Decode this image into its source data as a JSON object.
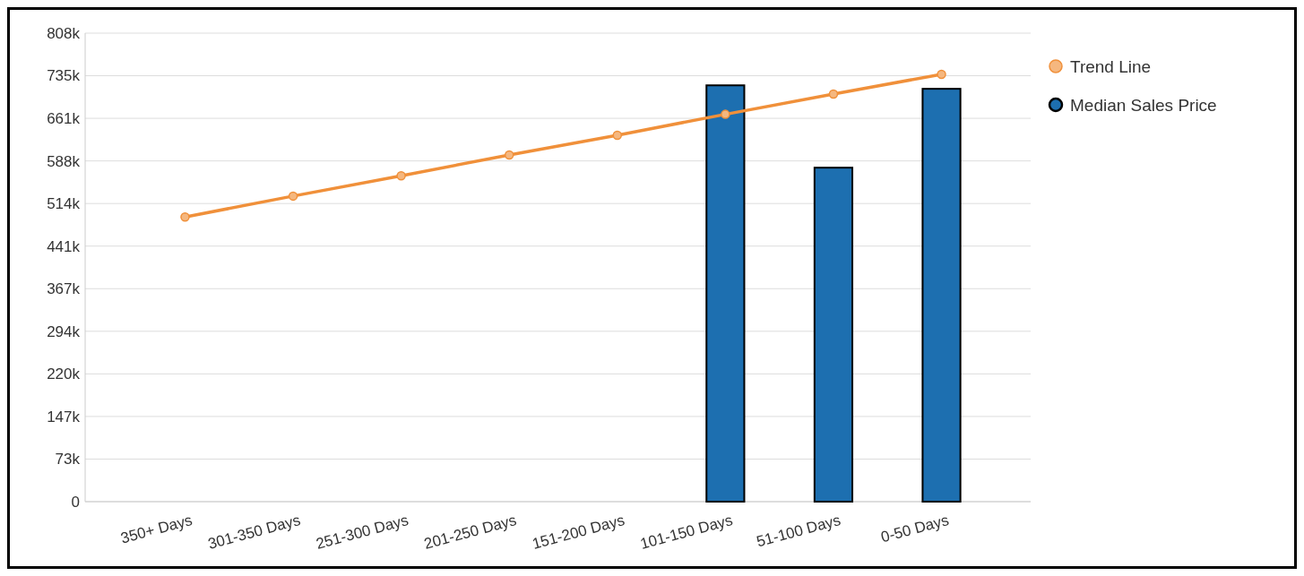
{
  "chart_data": {
    "type": "bar",
    "categories": [
      "350+ Days",
      "301-350 Days",
      "251-300 Days",
      "201-250 Days",
      "151-200 Days",
      "101-150 Days",
      "51-100 Days",
      "0-50 Days"
    ],
    "series": [
      {
        "name": "Trend Line",
        "type": "line",
        "color": "#f0903a",
        "values": [
          491000,
          527000,
          562000,
          598000,
          632000,
          668000,
          703000,
          737000
        ]
      },
      {
        "name": "Median Sales Price",
        "color": "#1d6fb0",
        "values": [
          null,
          null,
          null,
          null,
          null,
          718000,
          576000,
          712000
        ]
      }
    ],
    "ylim": [
      0,
      808000
    ],
    "yticks": [
      0,
      {
        "value": 73455,
        "label": "73k"
      },
      {
        "value": 146909,
        "label": "147k"
      },
      {
        "value": 220364,
        "label": "220k"
      },
      {
        "value": 293818,
        "label": "294k"
      },
      {
        "value": 367273,
        "label": "367k"
      },
      {
        "value": 440727,
        "label": "441k"
      },
      {
        "value": 514182,
        "label": "514k"
      },
      {
        "value": 587636,
        "label": "588k"
      },
      {
        "value": 661091,
        "label": "661k"
      },
      {
        "value": 734545,
        "label": "735k"
      },
      {
        "value": 808000,
        "label": "808k"
      }
    ],
    "grid": "y",
    "legend": "top right",
    "marker": "circle"
  }
}
